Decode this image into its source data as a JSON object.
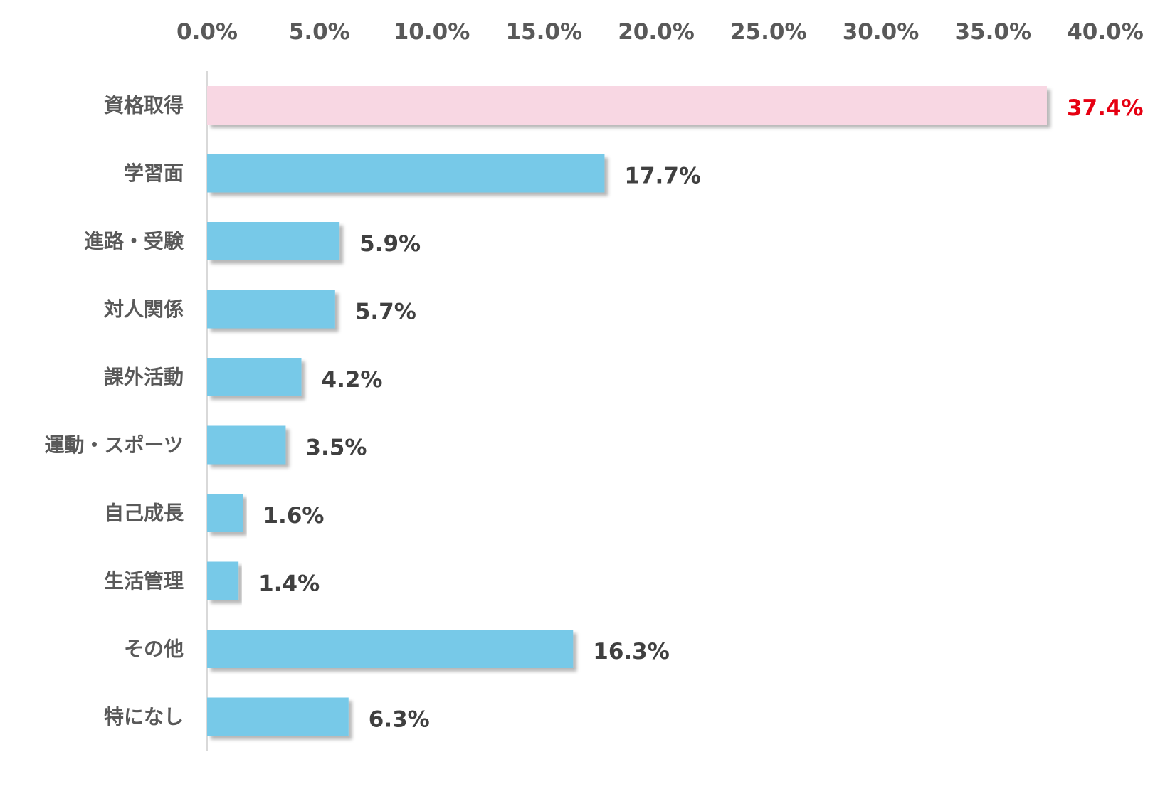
{
  "chart_data": {
    "type": "bar",
    "orientation": "horizontal",
    "xaxis_position": "top",
    "grid": false,
    "legend": "none",
    "xlim": [
      0,
      40
    ],
    "x_ticks": [
      0,
      5,
      10,
      15,
      20,
      25,
      30,
      35,
      40
    ],
    "x_tick_labels": [
      "0.0%",
      "5.0%",
      "10.0%",
      "15.0%",
      "20.0%",
      "25.0%",
      "30.0%",
      "35.0%",
      "40.0%"
    ],
    "categories": [
      "資格取得",
      "学習面",
      "進路・受験",
      "対人関係",
      "課外活動",
      "運動・スポーツ",
      "自己成長",
      "生活管理",
      "その他",
      "特になし"
    ],
    "values": [
      37.4,
      17.7,
      5.9,
      5.7,
      4.2,
      3.5,
      1.6,
      1.4,
      16.3,
      6.3
    ],
    "data_labels": [
      "37.4%",
      "17.7%",
      "5.9%",
      "5.7%",
      "4.2%",
      "3.5%",
      "1.6%",
      "1.4%",
      "16.3%",
      "6.3%"
    ],
    "highlight_index": 0,
    "colors": {
      "bar": "#77c9e8",
      "highlight_bar": "#f8d7e3",
      "highlight_label": "#e60012",
      "label": "#404040",
      "tick": "#595959",
      "axis": "#d9d9d9"
    }
  }
}
